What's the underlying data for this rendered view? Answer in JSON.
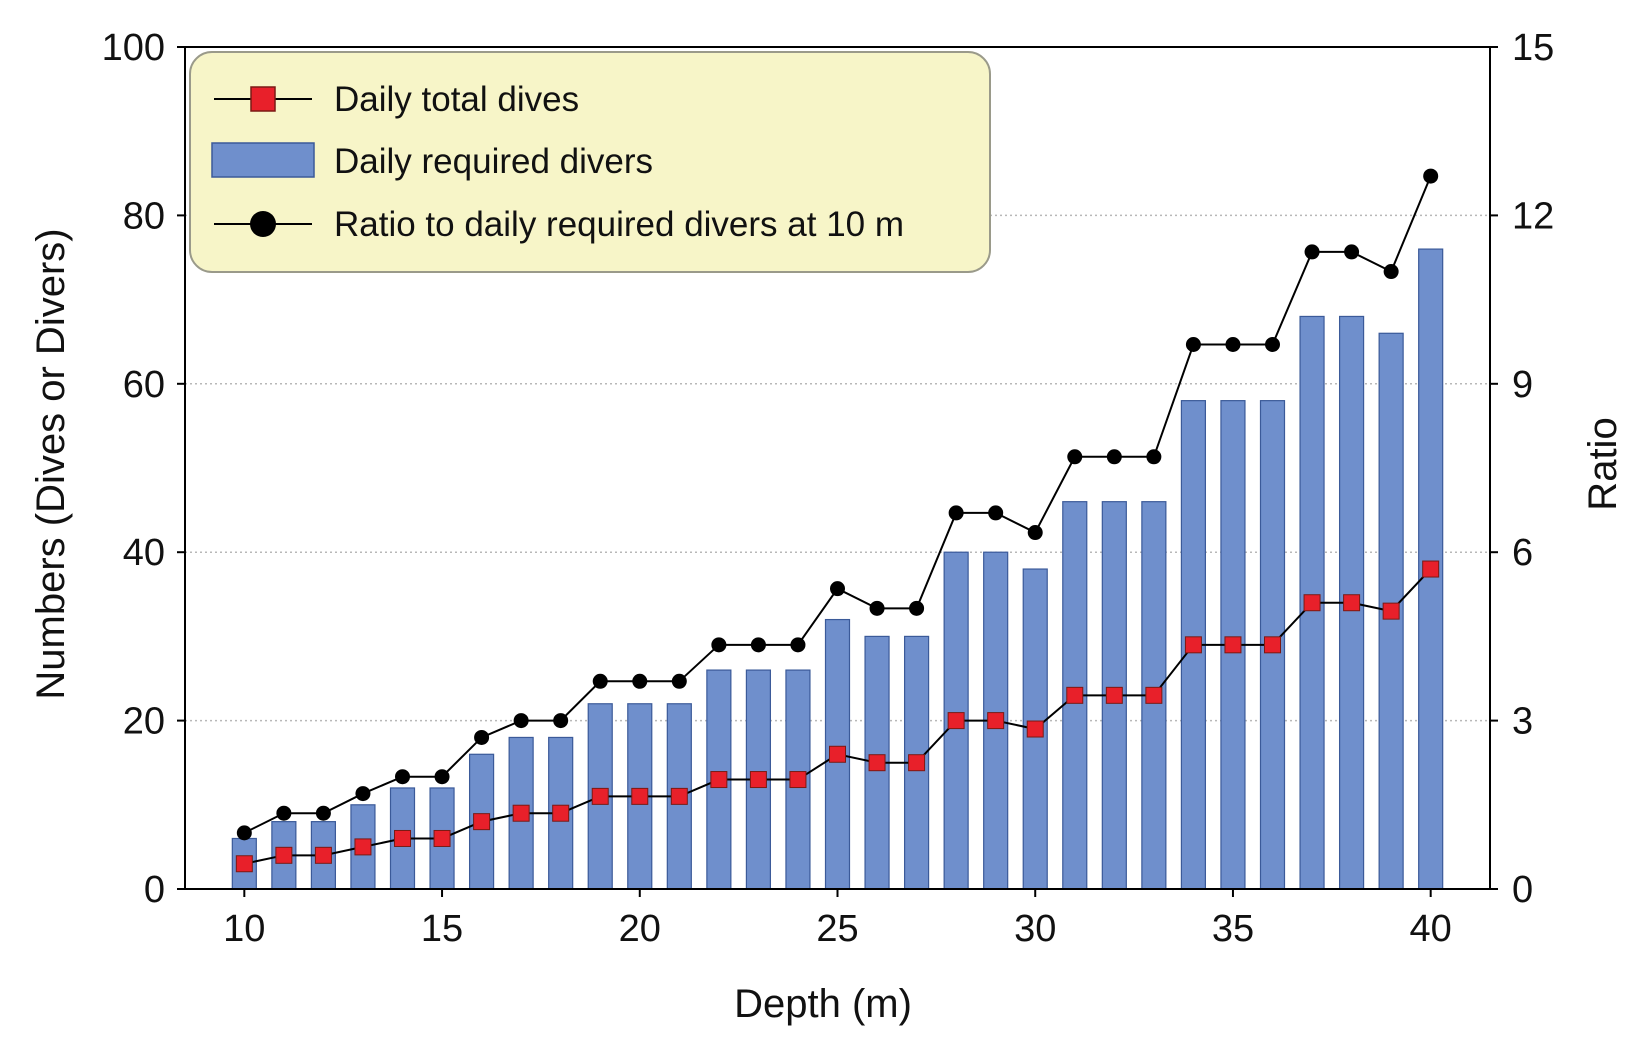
{
  "chart_data": {
    "type": "bar",
    "x_label": "Depth (m)",
    "y_label_left": "Numbers (Dives or Divers)",
    "y_label_right": "Ratio",
    "x": [
      10,
      11,
      12,
      13,
      14,
      15,
      16,
      17,
      18,
      19,
      20,
      21,
      22,
      23,
      24,
      25,
      26,
      27,
      28,
      29,
      30,
      31,
      32,
      33,
      34,
      35,
      36,
      37,
      38,
      39,
      40
    ],
    "x_ticks": [
      10,
      15,
      20,
      25,
      30,
      35,
      40
    ],
    "x_range": [
      8.5,
      41.5
    ],
    "y_left_range": [
      0,
      100
    ],
    "y_left_ticks": [
      0,
      20,
      40,
      60,
      80,
      100
    ],
    "y_right_range": [
      0,
      15
    ],
    "y_right_ticks": [
      0,
      3,
      6,
      9,
      12,
      15
    ],
    "gridlines": "horizontal dotted",
    "legend_position": "top-left",
    "series": [
      {
        "name": "Daily total dives",
        "kind": "line-square",
        "axis": "left",
        "color": "#e8202a",
        "values": [
          3,
          4,
          4,
          5,
          6,
          6,
          8,
          9,
          9,
          11,
          11,
          11,
          13,
          13,
          13,
          16,
          15,
          15,
          20,
          20,
          19,
          23,
          23,
          23,
          29,
          29,
          29,
          34,
          34,
          33,
          38
        ]
      },
      {
        "name": "Daily required divers",
        "kind": "bar",
        "axis": "left",
        "color": "#6f8fcc",
        "values": [
          6,
          8,
          8,
          10,
          12,
          12,
          16,
          18,
          18,
          22,
          22,
          22,
          26,
          26,
          26,
          32,
          30,
          30,
          40,
          40,
          38,
          46,
          46,
          46,
          58,
          58,
          58,
          68,
          68,
          66,
          76
        ]
      },
      {
        "name": "Ratio to daily required divers at 10 m",
        "kind": "line-circle",
        "axis": "right",
        "color": "#000000",
        "values": [
          1.0,
          1.35,
          1.35,
          1.7,
          2.0,
          2.0,
          2.7,
          3.0,
          3.0,
          3.7,
          3.7,
          3.7,
          4.35,
          4.35,
          4.35,
          5.35,
          5.0,
          5.0,
          6.7,
          6.7,
          6.35,
          7.7,
          7.7,
          7.7,
          9.7,
          9.7,
          9.7,
          11.35,
          11.35,
          11.0,
          12.7
        ]
      }
    ]
  }
}
